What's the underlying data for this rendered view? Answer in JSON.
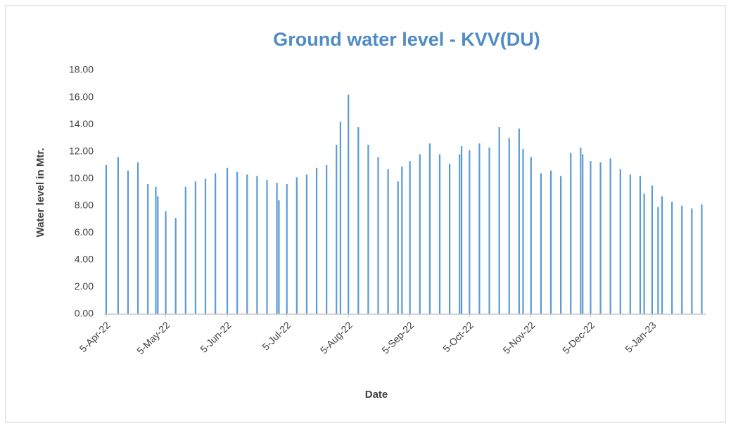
{
  "chart_data": {
    "type": "bar",
    "title": "Ground water level - KVV(DU)",
    "x_label": "Date",
    "y_label": "Water level in Mtr.",
    "color": "#5b9bd5",
    "x": [
      "5-Apr-22",
      "11-Apr-22",
      "16-Apr-22",
      "21-Apr-22",
      "26-Apr-22",
      "30-Apr-22",
      "1-May-22",
      "5-May-22",
      "10-May-22",
      "15-May-22",
      "20-May-22",
      "25-May-22",
      "30-May-22",
      "5-Jun-22",
      "10-Jun-22",
      "15-Jun-22",
      "20-Jun-22",
      "25-Jun-22",
      "30-Jun-22",
      "1-Jul-22",
      "5-Jul-22",
      "10-Jul-22",
      "15-Jul-22",
      "20-Jul-22",
      "25-Jul-22",
      "30-Jul-22",
      "1-Aug-22",
      "5-Aug-22",
      "10-Aug-22",
      "15-Aug-22",
      "20-Aug-22",
      "25-Aug-22",
      "30-Aug-22",
      "1-Sep-22",
      "5-Sep-22",
      "10-Sep-22",
      "15-Sep-22",
      "20-Sep-22",
      "25-Sep-22",
      "30-Sep-22",
      "1-Oct-22",
      "5-Oct-22",
      "10-Oct-22",
      "15-Oct-22",
      "20-Oct-22",
      "25-Oct-22",
      "30-Oct-22",
      "1-Nov-22",
      "5-Nov-22",
      "10-Nov-22",
      "15-Nov-22",
      "20-Nov-22",
      "25-Nov-22",
      "30-Nov-22",
      "1-Dec-22",
      "5-Dec-22",
      "10-Dec-22",
      "15-Dec-22",
      "20-Dec-22",
      "25-Dec-22",
      "30-Dec-22",
      "1-Jan-23",
      "5-Jan-23",
      "8-Jan-23",
      "10-Jan-23",
      "15-Jan-23",
      "20-Jan-23",
      "25-Jan-23",
      "30-Jan-23"
    ],
    "values": [
      11.0,
      11.6,
      10.6,
      11.2,
      9.6,
      9.4,
      8.7,
      7.6,
      7.1,
      9.4,
      9.8,
      10.0,
      10.4,
      10.8,
      10.5,
      10.3,
      10.2,
      9.9,
      9.7,
      8.4,
      9.6,
      10.1,
      10.3,
      10.8,
      11.0,
      12.5,
      14.2,
      16.2,
      13.8,
      12.5,
      11.6,
      10.7,
      9.8,
      10.9,
      11.3,
      11.8,
      12.6,
      11.8,
      11.1,
      11.8,
      12.4,
      12.1,
      12.6,
      12.3,
      13.8,
      13.0,
      13.7,
      12.2,
      11.6,
      10.4,
      10.6,
      10.2,
      11.9,
      12.3,
      11.8,
      11.3,
      11.2,
      11.5,
      10.7,
      10.3,
      10.2,
      8.9,
      9.5,
      7.9,
      8.7,
      8.3,
      8.0,
      7.8,
      8.1
    ],
    "xlim": [
      "4-Apr-22",
      "1-Feb-23"
    ],
    "xticks": [
      "5-Apr-22",
      "5-May-22",
      "5-Jun-22",
      "5-Jul-22",
      "5-Aug-22",
      "5-Sep-22",
      "5-Oct-22",
      "5-Nov-22",
      "5-Dec-22",
      "5-Jan-23"
    ],
    "ylim": [
      0,
      18
    ],
    "yticks": [
      {
        "value": 0,
        "label": "0.00"
      },
      {
        "value": 2,
        "label": "2.00"
      },
      {
        "value": 4,
        "label": "4.00"
      },
      {
        "value": 6,
        "label": "6.00"
      },
      {
        "value": 8,
        "label": "8.00"
      },
      {
        "value": 10,
        "label": "10.00"
      },
      {
        "value": 12,
        "label": "12.00"
      },
      {
        "value": 14,
        "label": "14.00"
      },
      {
        "value": 16,
        "label": "16.00"
      },
      {
        "value": 18,
        "label": "18.00"
      }
    ],
    "grid": false
  }
}
